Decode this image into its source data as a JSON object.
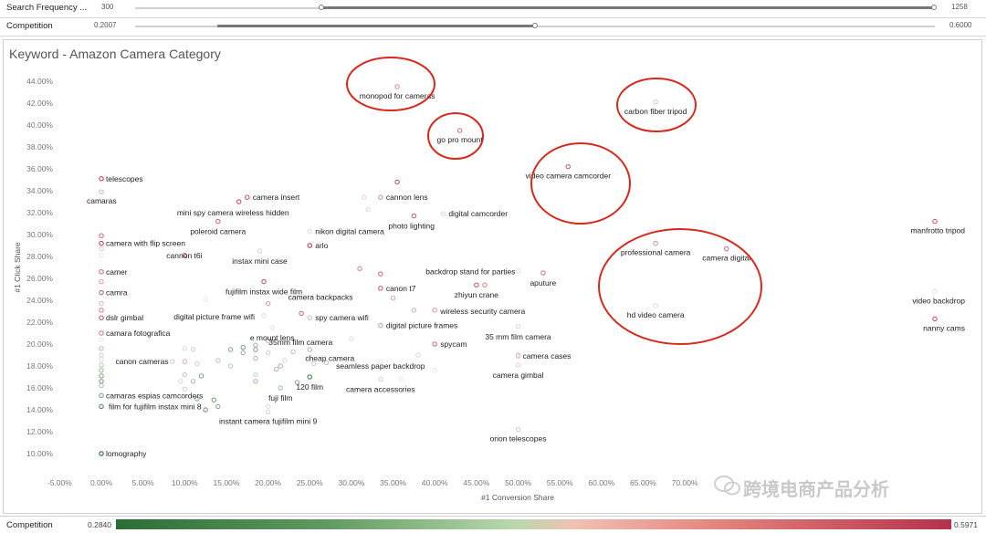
{
  "filters": {
    "search_frequency": {
      "label": "Search Frequency ...",
      "min": "300",
      "max": "1258"
    },
    "competition": {
      "label": "Competition",
      "min": "0.2007",
      "max": "0.6000"
    }
  },
  "legend": {
    "label": "Competition",
    "min": "0.2840",
    "max": "0.5971"
  },
  "watermark": "跨境电商产品分析",
  "chart_data": {
    "type": "scatter",
    "title": "Keyword - Amazon Camera Category",
    "xlabel": "#1 Conversion Share",
    "ylabel": "#1 Click Share",
    "xlim": [
      -0.06,
      1.065
    ],
    "ylim": [
      0.085,
      0.455
    ],
    "x_ticks": [
      "-5.00%",
      "0.00%",
      "5.00%",
      "10.00%",
      "15.00%",
      "20.00%",
      "25.00%",
      "30.00%",
      "35.00%",
      "40.00%",
      "45.00%",
      "50.00%",
      "55.00%",
      "60.00%",
      "65.00%",
      "70.00%"
    ],
    "y_ticks": [
      "10.00%",
      "12.00%",
      "14.00%",
      "16.00%",
      "18.00%",
      "20.00%",
      "22.00%",
      "24.00%",
      "26.00%",
      "28.00%",
      "30.00%",
      "32.00%",
      "34.00%",
      "36.00%",
      "38.00%",
      "40.00%",
      "42.00%",
      "44.00%"
    ],
    "grid": false,
    "color_encoding": {
      "field": "Competition",
      "min_color": "#2b6e35",
      "mid_color": "#e6e6e6",
      "max_color": "#b5324a"
    },
    "highlight_color": "#d42a1e",
    "points": [
      {
        "label": "monopod for cameras",
        "x": 0.355,
        "y": 0.435,
        "c": 0.5,
        "hl": true
      },
      {
        "label": "carbon fiber tripod",
        "x": 0.665,
        "y": 0.421,
        "c": 0.45,
        "hl": true
      },
      {
        "label": "go pro mount",
        "x": 0.43,
        "y": 0.395,
        "c": 0.52,
        "hl": true
      },
      {
        "label": "video camera camcorder",
        "x": 0.56,
        "y": 0.362,
        "c": 0.55,
        "hl": true
      },
      {
        "label": "telescopes",
        "x": 0.0,
        "y": 0.351,
        "c": 0.58
      },
      {
        "label": "camaras",
        "x": 0.0,
        "y": 0.339,
        "c": 0.47
      },
      {
        "label": "camera insert",
        "x": 0.175,
        "y": 0.334,
        "c": 0.56
      },
      {
        "label": "cannon lens",
        "x": 0.335,
        "y": 0.334,
        "c": 0.5
      },
      {
        "label": "mini spy camera wireless hidden",
        "x": 0.165,
        "y": 0.33,
        "c": 0.56
      },
      {
        "label": "digital camcorder",
        "x": 0.41,
        "y": 0.319,
        "c": 0.44
      },
      {
        "label": "photo lighting",
        "x": 0.375,
        "y": 0.317,
        "c": 0.55
      },
      {
        "label": "poleroid camera",
        "x": 0.14,
        "y": 0.312,
        "c": 0.54
      },
      {
        "label": "manfrotto tripod",
        "x": 1.0,
        "y": 0.312,
        "c": 0.55
      },
      {
        "label": "nikon digital camera",
        "x": 0.25,
        "y": 0.303,
        "c": 0.43
      },
      {
        "label": "camera with flip screen",
        "x": 0.0,
        "y": 0.292,
        "c": 0.58
      },
      {
        "label": "professional camera",
        "x": 0.665,
        "y": 0.292,
        "c": 0.5,
        "hl": true
      },
      {
        "label": "arlo",
        "x": 0.25,
        "y": 0.29,
        "c": 0.59
      },
      {
        "label": "camera digital",
        "x": 0.75,
        "y": 0.287,
        "c": 0.53,
        "hl": true
      },
      {
        "label": "instax mini case",
        "x": 0.19,
        "y": 0.285,
        "c": 0.44
      },
      {
        "label": "cannon t6i",
        "x": 0.1,
        "y": 0.281,
        "c": 0.56
      },
      {
        "label": "backdrop stand for parties",
        "x": 0.5,
        "y": 0.267,
        "c": 0.43
      },
      {
        "label": "aputure",
        "x": 0.53,
        "y": 0.265,
        "c": 0.52
      },
      {
        "label": "camer",
        "x": 0.0,
        "y": 0.266,
        "c": 0.54
      },
      {
        "label": "fujifilm instax wide film",
        "x": 0.195,
        "y": 0.257,
        "c": 0.56
      },
      {
        "label": "canon t7",
        "x": 0.335,
        "y": 0.251,
        "c": 0.55
      },
      {
        "label": "zhiyun crane",
        "x": 0.45,
        "y": 0.254,
        "c": 0.56
      },
      {
        "label": "video backdrop",
        "x": 1.0,
        "y": 0.248,
        "c": 0.42
      },
      {
        "label": "camra",
        "x": 0.0,
        "y": 0.247,
        "c": 0.55
      },
      {
        "label": "camera backpacks",
        "x": 0.2,
        "y": 0.237,
        "c": 0.49
      },
      {
        "label": "hd video camera",
        "x": 0.665,
        "y": 0.235,
        "c": 0.43,
        "hl": true
      },
      {
        "label": "wireless security camera",
        "x": 0.4,
        "y": 0.231,
        "c": 0.49
      },
      {
        "label": "digital picture frame wifi",
        "x": 0.195,
        "y": 0.226,
        "c": 0.41
      },
      {
        "label": "spy camera wifi",
        "x": 0.25,
        "y": 0.224,
        "c": 0.47
      },
      {
        "label": "dslr gimbal",
        "x": 0.0,
        "y": 0.224,
        "c": 0.56
      },
      {
        "label": "nanny cams",
        "x": 1.0,
        "y": 0.223,
        "c": 0.56
      },
      {
        "label": "digital picture frames",
        "x": 0.335,
        "y": 0.217,
        "c": 0.49
      },
      {
        "label": "e mount lens",
        "x": 0.205,
        "y": 0.215,
        "c": 0.42
      },
      {
        "label": "35 mm film camera",
        "x": 0.5,
        "y": 0.216,
        "c": 0.4
      },
      {
        "label": "camara fotografica",
        "x": 0.0,
        "y": 0.21,
        "c": 0.52
      },
      {
        "label": "spycam",
        "x": 0.4,
        "y": 0.2,
        "c": 0.53
      },
      {
        "label": "35mm film camera",
        "x": 0.25,
        "y": 0.195,
        "c": 0.35
      },
      {
        "label": "camera cases",
        "x": 0.5,
        "y": 0.19,
        "c": 0.45
      },
      {
        "label": "cheap camera",
        "x": 0.25,
        "y": 0.188,
        "c": 0.43
      },
      {
        "label": "canon cameras",
        "x": 0.085,
        "y": 0.184,
        "c": 0.45
      },
      {
        "label": "seamless paper backdrop",
        "x": 0.335,
        "y": 0.184,
        "c": 0.42
      },
      {
        "label": "camera gimbal",
        "x": 0.5,
        "y": 0.181,
        "c": 0.44
      },
      {
        "label": "camera accessories",
        "x": 0.335,
        "y": 0.168,
        "c": 0.44
      },
      {
        "label": "120 film",
        "x": 0.25,
        "y": 0.17,
        "c": 0.24
      },
      {
        "label": "fuji film",
        "x": 0.215,
        "y": 0.16,
        "c": 0.35
      },
      {
        "label": "camaras espias camcorders",
        "x": 0.0,
        "y": 0.153,
        "c": 0.3
      },
      {
        "label": "film for fujifilm instax mini 8",
        "x": 0.0,
        "y": 0.143,
        "c": 0.25
      },
      {
        "label": "instant camera fujifilm mini 9",
        "x": 0.2,
        "y": 0.138,
        "c": 0.44
      },
      {
        "label": "orion telescopes",
        "x": 0.5,
        "y": 0.122,
        "c": 0.45
      },
      {
        "label": "lomography",
        "x": 0.0,
        "y": 0.1,
        "c": 0.2
      }
    ],
    "unlabeled_points": [
      [
        0.0,
        0.299,
        0.55
      ],
      [
        0.0,
        0.287,
        0.45
      ],
      [
        0.0,
        0.281,
        0.42
      ],
      [
        0.0,
        0.257,
        0.5
      ],
      [
        0.0,
        0.237,
        0.47
      ],
      [
        0.0,
        0.231,
        0.52
      ],
      [
        0.0,
        0.204,
        0.42
      ],
      [
        0.0,
        0.196,
        0.48
      ],
      [
        0.0,
        0.19,
        0.38
      ],
      [
        0.0,
        0.186,
        0.4
      ],
      [
        0.0,
        0.181,
        0.36
      ],
      [
        0.0,
        0.176,
        0.33
      ],
      [
        0.0,
        0.171,
        0.3
      ],
      [
        0.0,
        0.166,
        0.28
      ],
      [
        0.0,
        0.162,
        0.35
      ],
      [
        0.1,
        0.196,
        0.4
      ],
      [
        0.11,
        0.195,
        0.38
      ],
      [
        0.1,
        0.184,
        0.48
      ],
      [
        0.115,
        0.182,
        0.45
      ],
      [
        0.1,
        0.172,
        0.36
      ],
      [
        0.12,
        0.171,
        0.3
      ],
      [
        0.095,
        0.166,
        0.4
      ],
      [
        0.11,
        0.166,
        0.35
      ],
      [
        0.1,
        0.159,
        0.38
      ],
      [
        0.135,
        0.149,
        0.28
      ],
      [
        0.14,
        0.143,
        0.3
      ],
      [
        0.125,
        0.14,
        0.26
      ],
      [
        0.125,
        0.241,
        0.42
      ],
      [
        0.14,
        0.185,
        0.36
      ],
      [
        0.155,
        0.195,
        0.3
      ],
      [
        0.155,
        0.18,
        0.36
      ],
      [
        0.17,
        0.192,
        0.32
      ],
      [
        0.17,
        0.197,
        0.28
      ],
      [
        0.185,
        0.199,
        0.33
      ],
      [
        0.185,
        0.195,
        0.3
      ],
      [
        0.185,
        0.187,
        0.34
      ],
      [
        0.185,
        0.172,
        0.38
      ],
      [
        0.185,
        0.166,
        0.34
      ],
      [
        0.2,
        0.203,
        0.36
      ],
      [
        0.2,
        0.192,
        0.38
      ],
      [
        0.21,
        0.177,
        0.34
      ],
      [
        0.2,
        0.143,
        0.4
      ],
      [
        0.235,
        0.165,
        0.3
      ],
      [
        0.22,
        0.185,
        0.4
      ],
      [
        0.23,
        0.193,
        0.36
      ],
      [
        0.24,
        0.228,
        0.55
      ],
      [
        0.255,
        0.182,
        0.38
      ],
      [
        0.27,
        0.183,
        0.36
      ],
      [
        0.31,
        0.269,
        0.52
      ],
      [
        0.32,
        0.323,
        0.44
      ],
      [
        0.315,
        0.334,
        0.4
      ],
      [
        0.3,
        0.205,
        0.4
      ],
      [
        0.35,
        0.242,
        0.49
      ],
      [
        0.355,
        0.348,
        0.58
      ],
      [
        0.36,
        0.168,
        0.42
      ],
      [
        0.375,
        0.231,
        0.48
      ],
      [
        0.38,
        0.19,
        0.44
      ],
      [
        0.4,
        0.176,
        0.42
      ],
      [
        0.46,
        0.254,
        0.52
      ],
      [
        0.5,
        0.189,
        0.46
      ],
      [
        0.335,
        0.264,
        0.55
      ],
      [
        0.115,
        0.15,
        0.3
      ],
      [
        0.215,
        0.18,
        0.33
      ]
    ]
  }
}
